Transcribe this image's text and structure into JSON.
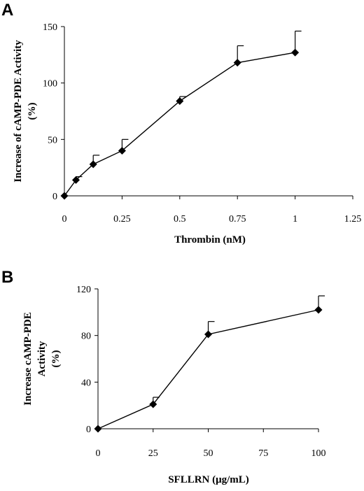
{
  "chart_data": [
    {
      "panel": "A",
      "type": "line",
      "xlabel": "Thrombin (nM)",
      "ylabel_lines": [
        "Increase of cAMP-PDE Activity",
        "(%)"
      ],
      "xlim": [
        0,
        1.25
      ],
      "ylim": [
        0,
        150
      ],
      "x_ticks": [
        0,
        0.25,
        0.5,
        0.75,
        1,
        1.25
      ],
      "x_tick_labels": [
        "0",
        "0.25",
        "0.5",
        "0.75",
        "1",
        "1.25"
      ],
      "y_ticks": [
        0,
        50,
        100,
        150
      ],
      "y_tick_labels": [
        "0",
        "50",
        "100",
        "150"
      ],
      "x": [
        0,
        0.05,
        0.125,
        0.25,
        0.5,
        0.75,
        1
      ],
      "y": [
        0,
        14,
        28,
        40,
        84,
        118,
        127
      ],
      "error_upper": [
        0,
        3,
        8,
        10,
        4,
        15,
        19
      ],
      "marker": "diamond"
    },
    {
      "panel": "B",
      "type": "line",
      "xlabel": "SFLLRN (μg/mL)",
      "ylabel_lines": [
        "Increase cAMP-PDE",
        "Activity",
        "(%)"
      ],
      "xlim": [
        0,
        100
      ],
      "ylim": [
        0,
        120
      ],
      "x_ticks": [
        0,
        25,
        50,
        75,
        100
      ],
      "x_tick_labels": [
        "0",
        "25",
        "50",
        "75",
        "100"
      ],
      "y_ticks": [
        0,
        40,
        80,
        120
      ],
      "y_tick_labels": [
        "0",
        "40",
        "80",
        "120"
      ],
      "x": [
        0,
        25,
        50,
        100
      ],
      "y": [
        0,
        21,
        81,
        102
      ],
      "error_upper": [
        0,
        6,
        11,
        12
      ],
      "marker": "diamond"
    }
  ]
}
